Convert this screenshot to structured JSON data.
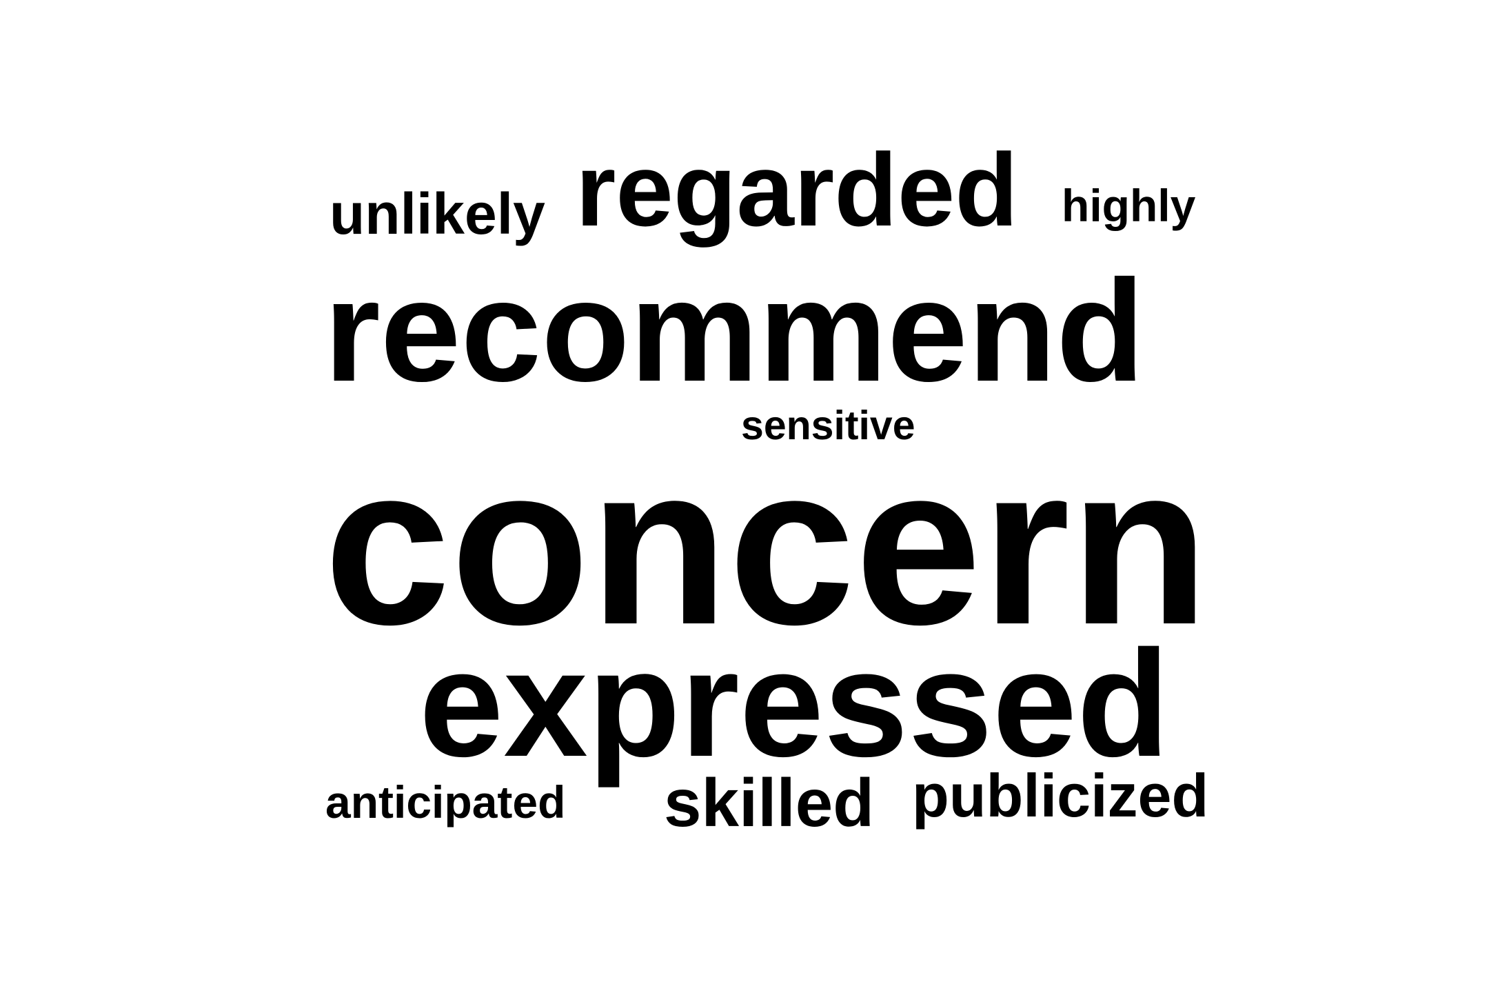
{
  "background_color": "#ffffff",
  "text_color": "#000000",
  "words": [
    {
      "id": "unlikely",
      "text": "unlikely"
    },
    {
      "id": "regarded",
      "text": "regarded"
    },
    {
      "id": "highly",
      "text": "highly"
    },
    {
      "id": "recommend",
      "text": "recommend"
    },
    {
      "id": "sensitive",
      "text": "sensitive"
    },
    {
      "id": "concern",
      "text": "concern"
    },
    {
      "id": "expressed",
      "text": "expressed"
    },
    {
      "id": "anticipated",
      "text": "anticipated"
    },
    {
      "id": "skilled",
      "text": "skilled"
    },
    {
      "id": "publicized",
      "text": "publicized"
    }
  ]
}
